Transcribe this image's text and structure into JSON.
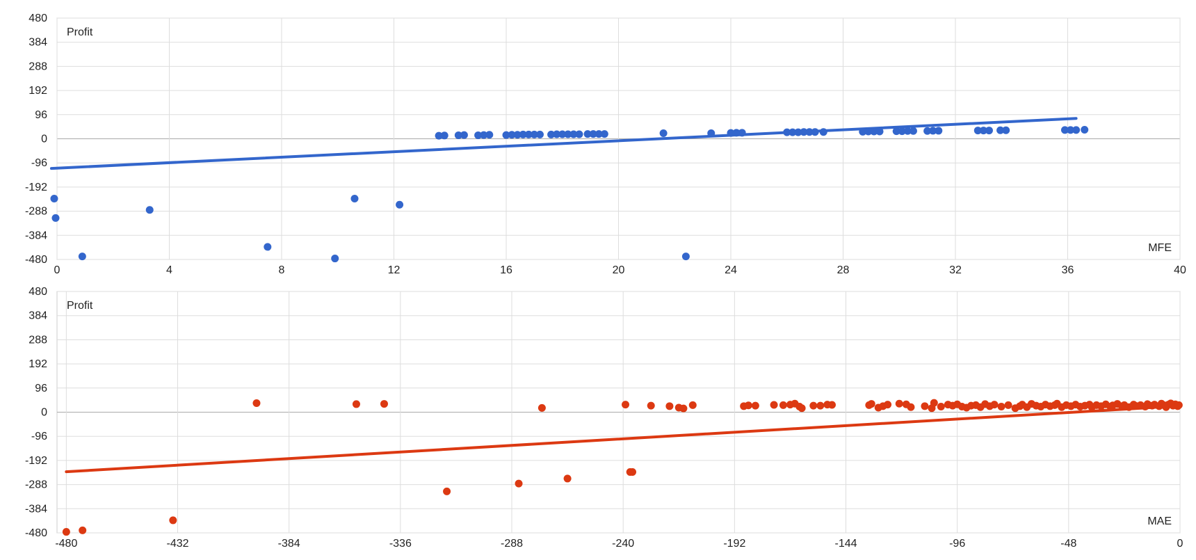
{
  "chart_data": [
    {
      "type": "scatter",
      "title": "",
      "ylabel": "Profit",
      "xlabel": "MFE",
      "xlim": [
        0,
        40
      ],
      "ylim": [
        -480,
        480
      ],
      "x_ticks": [
        "0",
        "4",
        "8",
        "12",
        "16",
        "20",
        "24",
        "28",
        "32",
        "36",
        "40"
      ],
      "y_ticks": [
        "480",
        "384",
        "288",
        "192",
        "96",
        "0",
        "-96",
        "-192",
        "-288",
        "-384",
        "-480"
      ],
      "grid": true,
      "color": "#3366cc",
      "trendline": {
        "x": [
          -0.2,
          36.3
        ],
        "y": [
          -118,
          81
        ]
      },
      "points": [
        [
          -0.1,
          -238
        ],
        [
          -0.05,
          -315
        ],
        [
          0.9,
          -468
        ],
        [
          3.3,
          -283
        ],
        [
          7.5,
          -430
        ],
        [
          9.9,
          -476
        ],
        [
          10.6,
          -238
        ],
        [
          12.2,
          -262
        ],
        [
          21.6,
          22
        ],
        [
          22.4,
          -468
        ],
        [
          13.6,
          12
        ],
        [
          13.8,
          13
        ],
        [
          14.3,
          14
        ],
        [
          14.5,
          15
        ],
        [
          15.0,
          14
        ],
        [
          15.2,
          15
        ],
        [
          15.4,
          16
        ],
        [
          16.0,
          15
        ],
        [
          16.2,
          16
        ],
        [
          16.4,
          16
        ],
        [
          16.6,
          17
        ],
        [
          16.8,
          17
        ],
        [
          17.0,
          17
        ],
        [
          17.2,
          17
        ],
        [
          17.6,
          17
        ],
        [
          17.8,
          18
        ],
        [
          18.0,
          18
        ],
        [
          18.2,
          18
        ],
        [
          18.4,
          18
        ],
        [
          18.6,
          18
        ],
        [
          18.9,
          19
        ],
        [
          19.1,
          19
        ],
        [
          19.3,
          19
        ],
        [
          19.5,
          19
        ],
        [
          23.3,
          22
        ],
        [
          24.0,
          23
        ],
        [
          24.2,
          24
        ],
        [
          24.4,
          24
        ],
        [
          26.0,
          26
        ],
        [
          26.2,
          26
        ],
        [
          26.4,
          26
        ],
        [
          26.6,
          27
        ],
        [
          26.8,
          27
        ],
        [
          27.0,
          27
        ],
        [
          27.3,
          27
        ],
        [
          28.7,
          28
        ],
        [
          28.9,
          29
        ],
        [
          29.1,
          29
        ],
        [
          29.3,
          29
        ],
        [
          29.9,
          30
        ],
        [
          30.1,
          30
        ],
        [
          30.3,
          31
        ],
        [
          30.5,
          31
        ],
        [
          31.0,
          31
        ],
        [
          31.2,
          32
        ],
        [
          31.4,
          32
        ],
        [
          32.8,
          33
        ],
        [
          33.0,
          33
        ],
        [
          33.2,
          33
        ],
        [
          33.6,
          34
        ],
        [
          33.8,
          34
        ],
        [
          35.9,
          35
        ],
        [
          36.1,
          35
        ],
        [
          36.3,
          35
        ],
        [
          36.6,
          36
        ]
      ]
    },
    {
      "type": "scatter",
      "title": "",
      "ylabel": "Profit",
      "xlabel": "MAE",
      "xlim": [
        -484,
        0
      ],
      "ylim": [
        -480,
        480
      ],
      "x_ticks": [
        "-480",
        "-432",
        "-384",
        "-336",
        "-288",
        "-240",
        "-192",
        "-144",
        "-96",
        "-48",
        "0"
      ],
      "y_ticks": [
        "480",
        "384",
        "288",
        "192",
        "96",
        "0",
        "-96",
        "-192",
        "-288",
        "-384",
        "-480"
      ],
      "grid": true,
      "color": "#dc3912",
      "trendline": {
        "x": [
          -480,
          0
        ],
        "y": [
          -237,
          25
        ]
      },
      "points": [
        [
          -480,
          -476
        ],
        [
          -473,
          -470
        ],
        [
          -434,
          -430
        ],
        [
          -398,
          36
        ],
        [
          -355,
          32
        ],
        [
          -343,
          33
        ],
        [
          -316,
          -315
        ],
        [
          -285,
          -284
        ],
        [
          -275,
          17
        ],
        [
          -264,
          -264
        ],
        [
          -239,
          30
        ],
        [
          -237,
          -238
        ],
        [
          -236,
          -238
        ],
        [
          -228,
          26
        ],
        [
          -220,
          24
        ],
        [
          -216,
          18
        ],
        [
          -214,
          15
        ],
        [
          -210,
          28
        ],
        [
          -188,
          24
        ],
        [
          -186,
          27
        ],
        [
          -183,
          26
        ],
        [
          -175,
          29
        ],
        [
          -171,
          28
        ],
        [
          -168,
          30
        ],
        [
          -166,
          34
        ],
        [
          -164,
          22
        ],
        [
          -163,
          16
        ],
        [
          -158,
          26
        ],
        [
          -155,
          26
        ],
        [
          -152,
          30
        ],
        [
          -150,
          29
        ],
        [
          -134,
          28
        ],
        [
          -133,
          33
        ],
        [
          -130,
          18
        ],
        [
          -128,
          24
        ],
        [
          -126,
          30
        ],
        [
          -121,
          34
        ],
        [
          -118,
          31
        ],
        [
          -116,
          20
        ],
        [
          -110,
          24
        ],
        [
          -107,
          16
        ],
        [
          -106,
          37
        ],
        [
          -103,
          22
        ],
        [
          -100,
          30
        ],
        [
          -98,
          26
        ],
        [
          -96,
          31
        ],
        [
          -94,
          22
        ],
        [
          -92,
          18
        ],
        [
          -90,
          26
        ],
        [
          -88,
          28
        ],
        [
          -86,
          20
        ],
        [
          -84,
          32
        ],
        [
          -82,
          24
        ],
        [
          -80,
          30
        ],
        [
          -77,
          22
        ],
        [
          -74,
          28
        ],
        [
          -71,
          16
        ],
        [
          -69,
          24
        ],
        [
          -68,
          30
        ],
        [
          -66,
          20
        ],
        [
          -64,
          33
        ],
        [
          -62,
          26
        ],
        [
          -60,
          22
        ],
        [
          -58,
          30
        ],
        [
          -56,
          24
        ],
        [
          -54,
          28
        ],
        [
          -53,
          34
        ],
        [
          -51,
          20
        ],
        [
          -49,
          28
        ],
        [
          -47,
          24
        ],
        [
          -45,
          30
        ],
        [
          -43,
          22
        ],
        [
          -41,
          26
        ],
        [
          -39,
          30
        ],
        [
          -38,
          20
        ],
        [
          -36,
          28
        ],
        [
          -34,
          24
        ],
        [
          -32,
          31
        ],
        [
          -30,
          22
        ],
        [
          -29,
          27
        ],
        [
          -27,
          33
        ],
        [
          -25,
          24
        ],
        [
          -24,
          28
        ],
        [
          -22,
          20
        ],
        [
          -20,
          30
        ],
        [
          -19,
          25
        ],
        [
          -17,
          28
        ],
        [
          -15,
          22
        ],
        [
          -14,
          32
        ],
        [
          -12,
          26
        ],
        [
          -11,
          30
        ],
        [
          -9,
          24
        ],
        [
          -8,
          34
        ],
        [
          -7,
          28
        ],
        [
          -6,
          20
        ],
        [
          -5,
          30
        ],
        [
          -4,
          35
        ],
        [
          -3,
          26
        ],
        [
          -2,
          31
        ],
        [
          -1,
          24
        ],
        [
          -0.5,
          28
        ]
      ]
    }
  ]
}
